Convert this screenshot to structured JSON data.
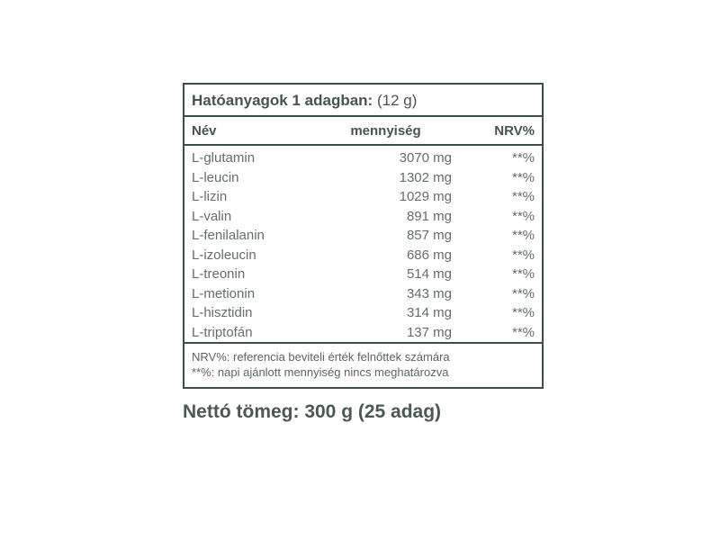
{
  "table": {
    "title_label": "Hatóanyagok 1 adagban:",
    "title_serving": "(12 g)",
    "columns": {
      "name": "Név",
      "amount": "mennyiség",
      "nrv": "NRV%"
    },
    "rows": [
      {
        "name": "L-glutamin",
        "amount": "3070 mg",
        "nrv": "**%"
      },
      {
        "name": "L-leucin",
        "amount": "1302 mg",
        "nrv": "**%"
      },
      {
        "name": "L-lizin",
        "amount": "1029 mg",
        "nrv": "**%"
      },
      {
        "name": "L-valin",
        "amount": "891 mg",
        "nrv": "**%"
      },
      {
        "name": "L-fenilalanin",
        "amount": "857 mg",
        "nrv": "**%"
      },
      {
        "name": "L-izoleucin",
        "amount": "686 mg",
        "nrv": "**%"
      },
      {
        "name": "L-treonin",
        "amount": "514 mg",
        "nrv": "**%"
      },
      {
        "name": "L-metionin",
        "amount": "343 mg",
        "nrv": "**%"
      },
      {
        "name": "L-hisztidin",
        "amount": "314 mg",
        "nrv": "**%"
      },
      {
        "name": "L-triptofán",
        "amount": "137 mg",
        "nrv": "**%"
      }
    ],
    "footnotes": [
      "NRV%: referencia beviteli érték felnőttek számára",
      "**%: napi ajánlott mennyiség nincs meghatározva"
    ]
  },
  "net_weight": "Nettó tömeg: 300 g (25 adag)",
  "colors": {
    "line": "#3f4c48",
    "heading": "#47544f",
    "rowtext": "#646e6c",
    "note": "#5b6561",
    "net": "#4b5854",
    "bg": "#ffffff"
  }
}
